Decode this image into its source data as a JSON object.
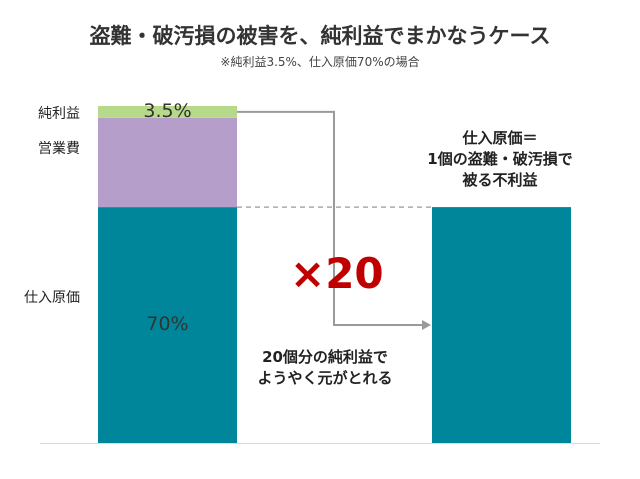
{
  "title": "盗難・破汚損の被害を、純利益でまかなうケース",
  "subtitle": "※純利益3.5%、仕入原価70%の場合",
  "colors": {
    "cost": "#00869a",
    "opex": "#b59ec9",
    "profit": "#b7d98a",
    "connector": "#9a9a9a",
    "accent": "#c00000"
  },
  "annotations": {
    "multiplier": "×20",
    "left_note_line1": "20個分の純利益で",
    "left_note_line2": "ようやく元がとれる",
    "right_note_line1": "仕入原価＝",
    "right_note_line2": "1個の盗難・破汚損で",
    "right_note_line3": "被る不利益"
  },
  "chart_data": {
    "type": "bar",
    "stacked": true,
    "ylim": [
      0,
      100
    ],
    "grid": false,
    "categories": [
      "",
      ""
    ],
    "series": [
      {
        "name": "仕入原価",
        "values": [
          70,
          70
        ],
        "label": "70%"
      },
      {
        "name": "営業費",
        "values": [
          26.5,
          0
        ],
        "label": ""
      },
      {
        "name": "純利益",
        "values": [
          3.5,
          0
        ],
        "label": "3.5%"
      }
    ]
  }
}
